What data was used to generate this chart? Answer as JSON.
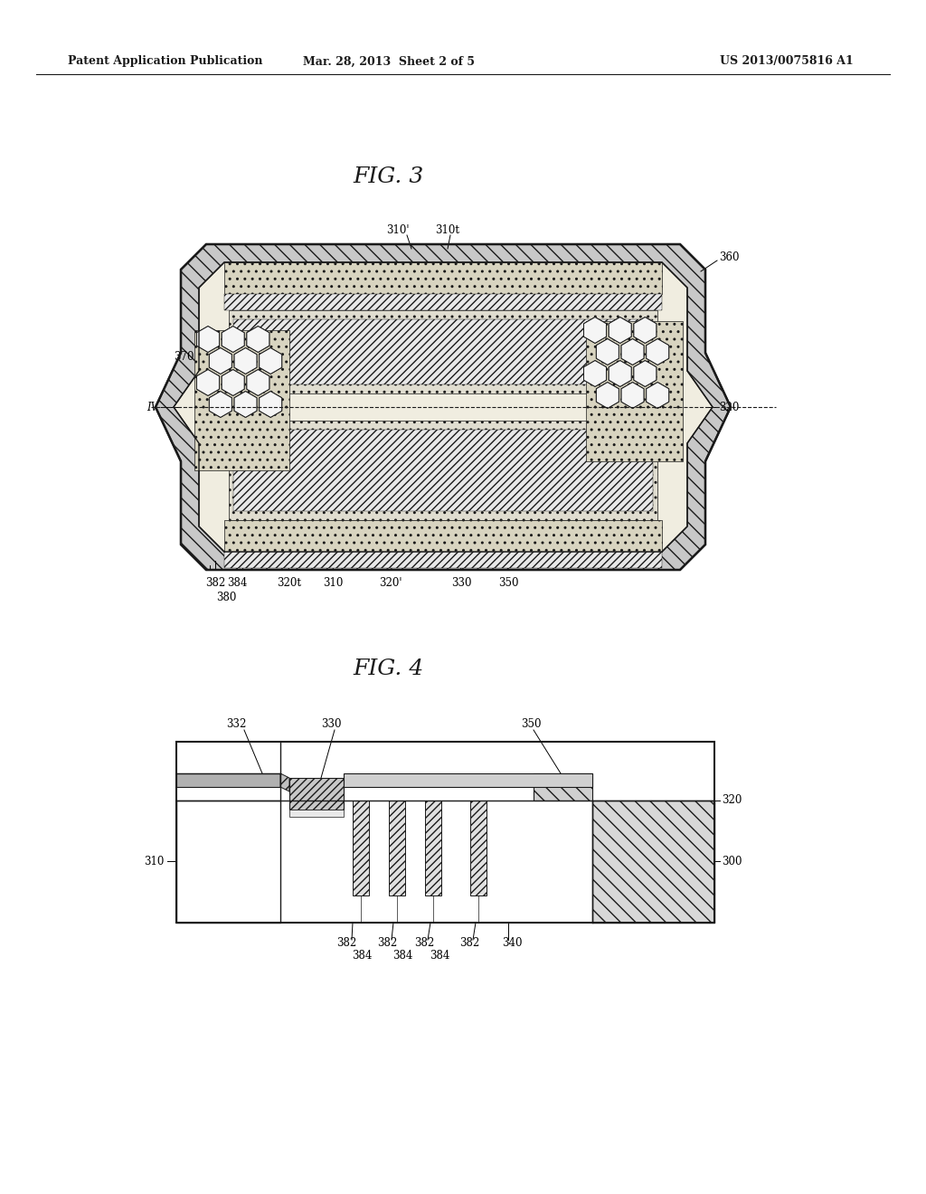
{
  "page_header_left": "Patent Application Publication",
  "page_header_mid": "Mar. 28, 2013  Sheet 2 of 5",
  "page_header_right": "US 2013/0075816 A1",
  "fig3_title": "FIG. 3",
  "fig4_title": "FIG. 4",
  "bg_color": "#ffffff",
  "line_color": "#1a1a1a"
}
